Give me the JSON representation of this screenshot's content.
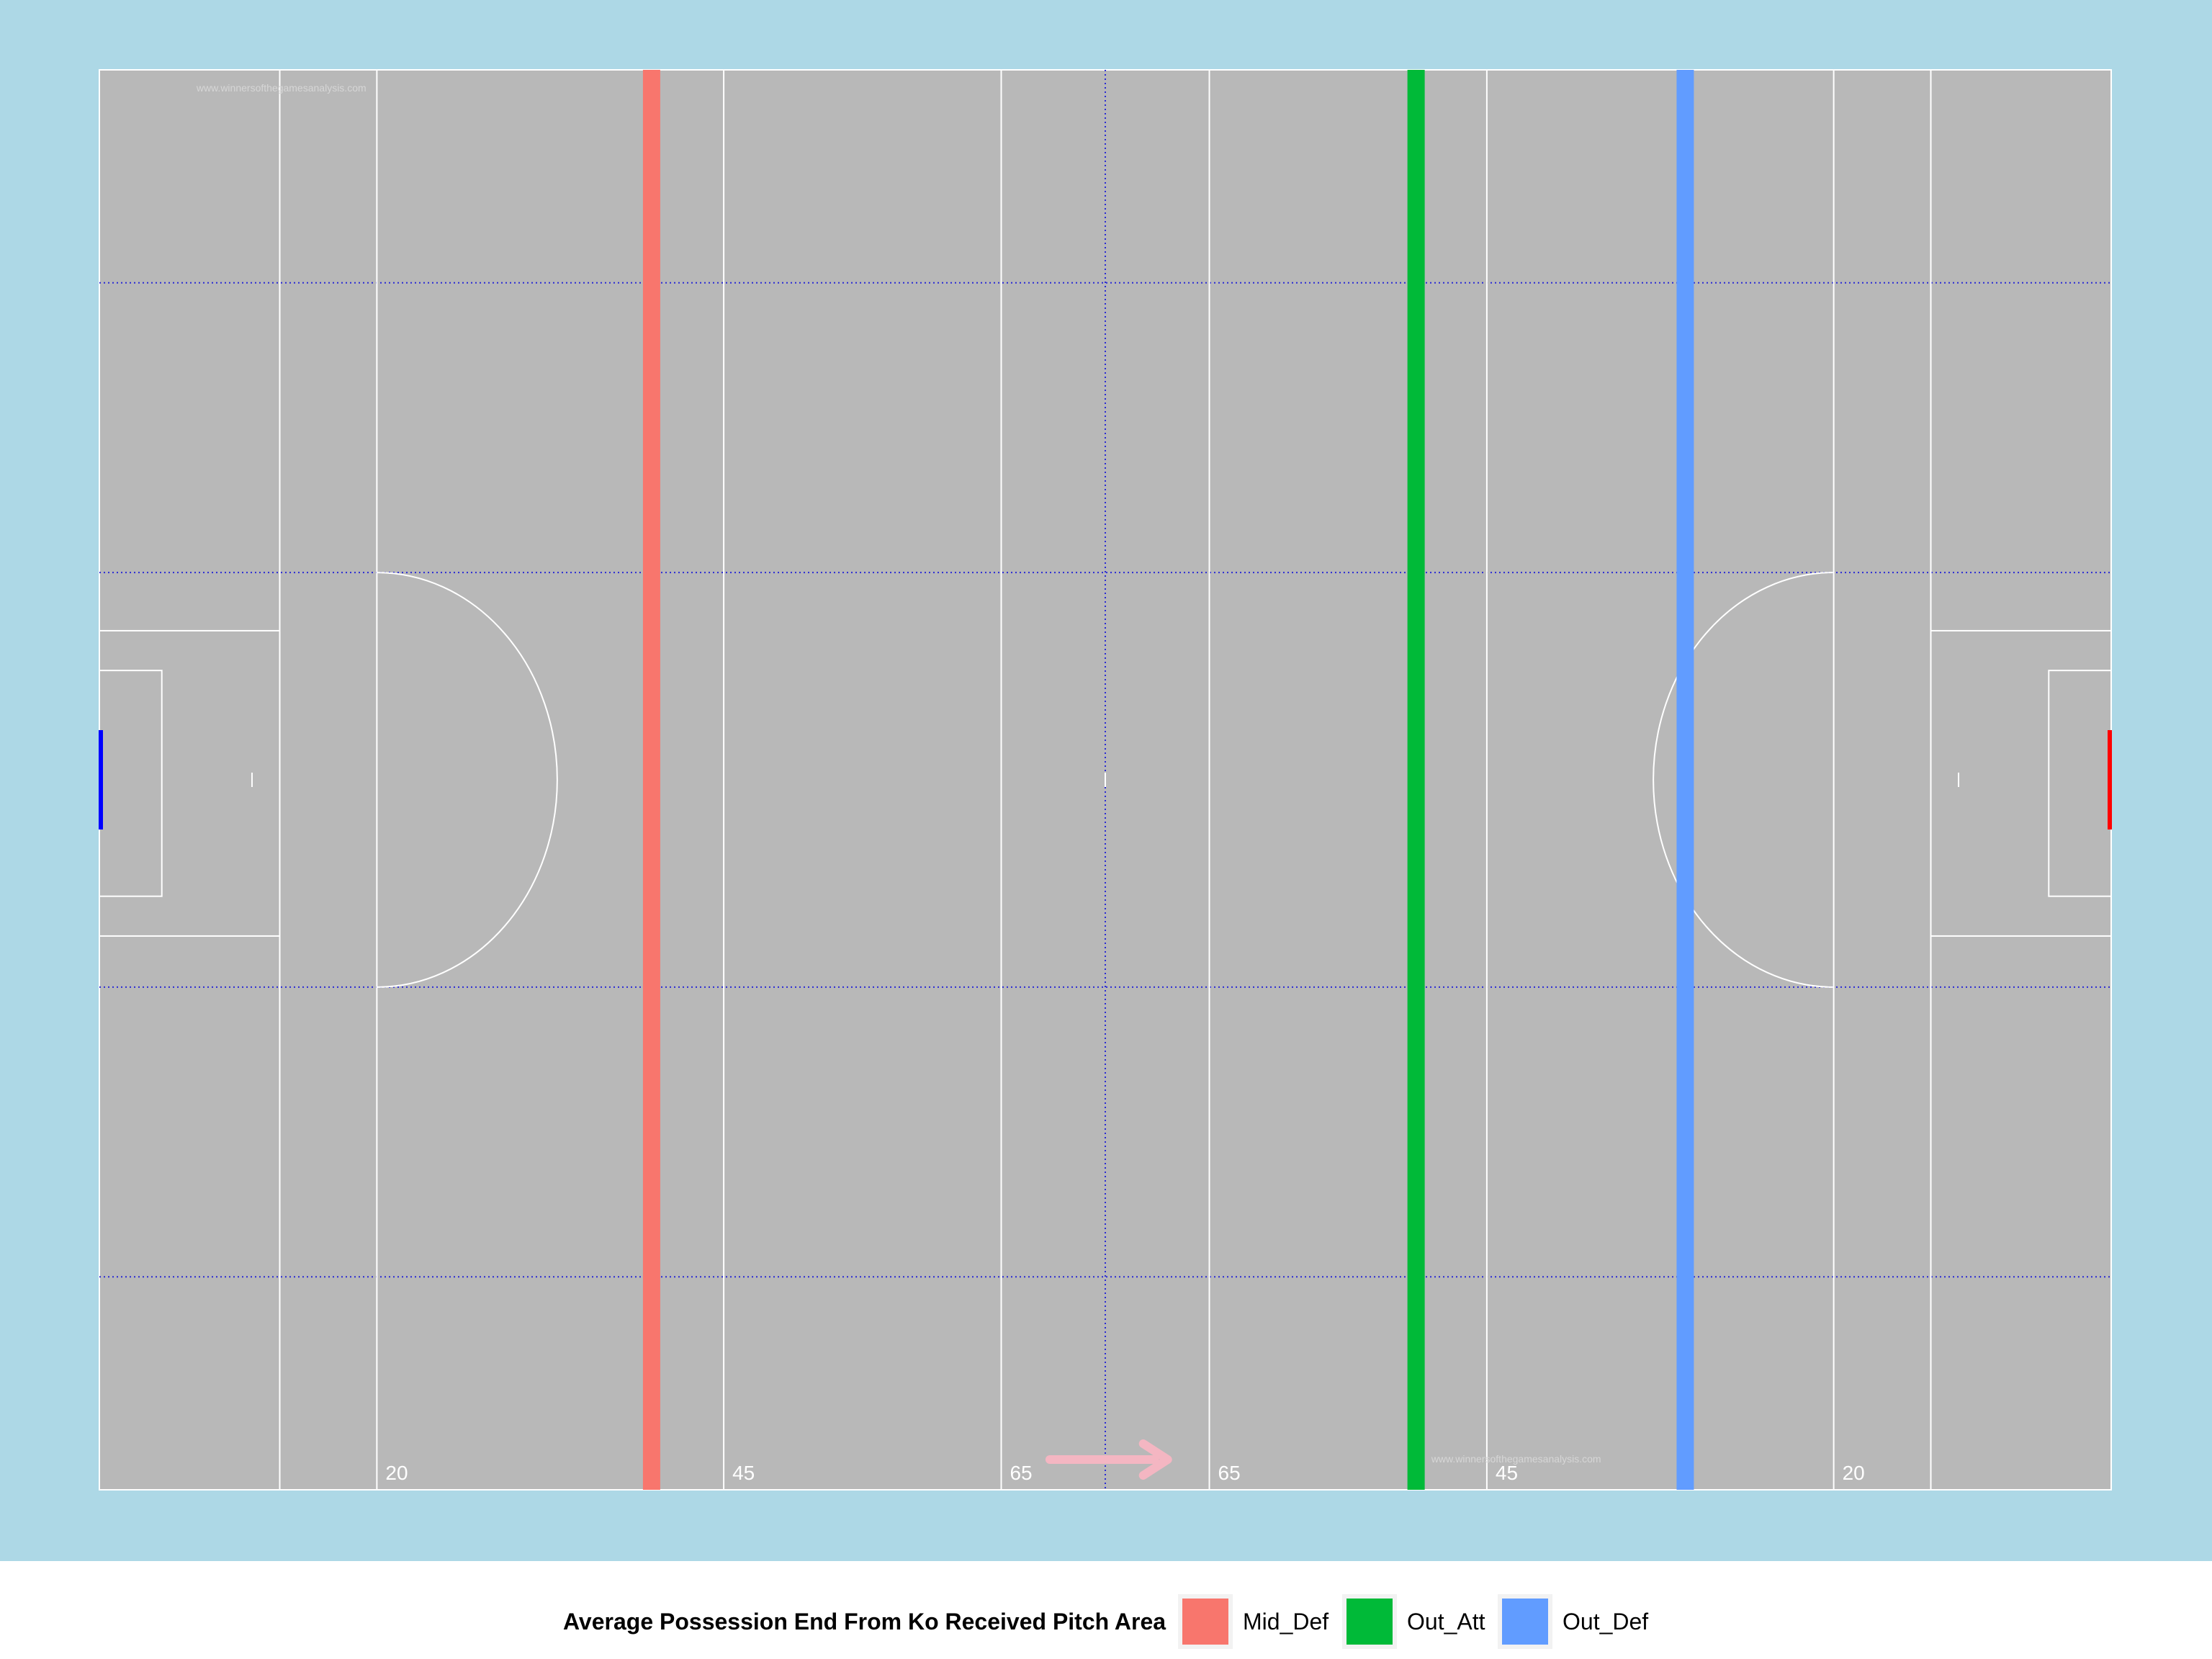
{
  "chart_data": {
    "type": "line",
    "subtype": "pitch-vertical-lines",
    "xlim": [
      0,
      145
    ],
    "ylim": [
      0,
      100
    ],
    "pitch_markings": {
      "distance_labels": [
        "20",
        "45",
        "65",
        "65",
        "45",
        "20"
      ],
      "watermark": "www.winnersofthegamesanalysis.com",
      "direction_arrow": "right"
    },
    "series": [
      {
        "name": "Mid_Def",
        "x": 39.8,
        "color": "#F8766D"
      },
      {
        "name": "Out_Att",
        "x": 94.9,
        "color": "#00BA38"
      },
      {
        "name": "Out_Def",
        "x": 114.3,
        "color": "#619CFF"
      }
    ],
    "legend": {
      "title": "Average Possession End From Ko Received Pitch Area",
      "position": "bottom"
    }
  },
  "colors": {
    "background": "#ADD8E6",
    "pitch": "#B8B8B8",
    "pitch_lines": "#FFFFFF",
    "grid_dotted": "#2B2BD4",
    "left_goal": "#0000FF",
    "right_goal": "#FF0000",
    "arrow": "#F4B6C2"
  }
}
